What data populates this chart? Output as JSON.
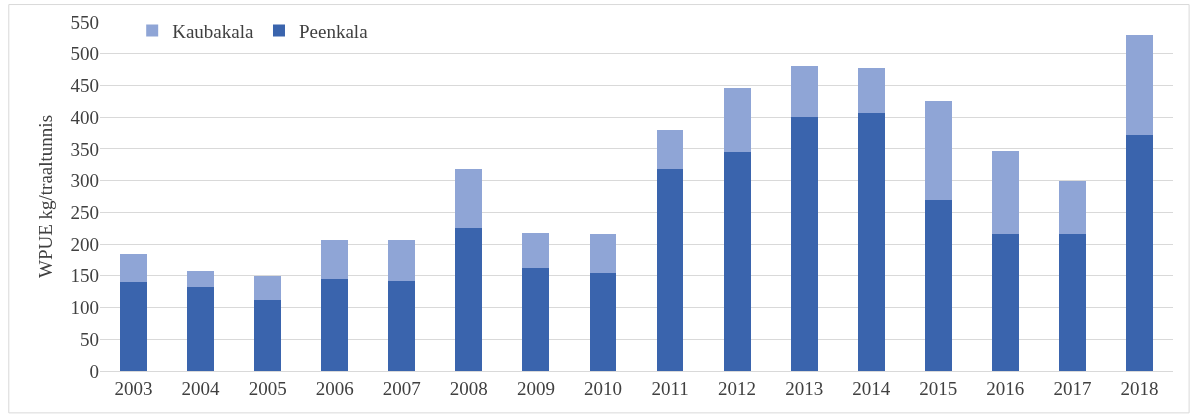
{
  "chart_data": {
    "type": "bar",
    "stacked": true,
    "ylabel": "WPUE kg/traaltunnis",
    "categories": [
      "2003",
      "2004",
      "2005",
      "2006",
      "2007",
      "2008",
      "2009",
      "2010",
      "2011",
      "2012",
      "2013",
      "2014",
      "2015",
      "2016",
      "2017",
      "2018"
    ],
    "series": [
      {
        "name": "Peenkala",
        "color": "#3a64ad",
        "values": [
          140,
          132,
          112,
          145,
          142,
          225,
          163,
          155,
          319,
          345,
          401,
          406,
          269,
          216,
          216,
          372
        ]
      },
      {
        "name": "Kaubakala",
        "color": "#8fa5d6",
        "values": [
          45,
          25,
          37,
          61,
          64,
          94,
          55,
          61,
          61,
          101,
          80,
          71,
          157,
          131,
          83,
          158
        ]
      }
    ],
    "ylim": [
      0,
      550
    ],
    "yticks": [
      0,
      50,
      100,
      150,
      200,
      250,
      300,
      350,
      400,
      450,
      500,
      550
    ],
    "grid": "y",
    "legend": "top left"
  }
}
